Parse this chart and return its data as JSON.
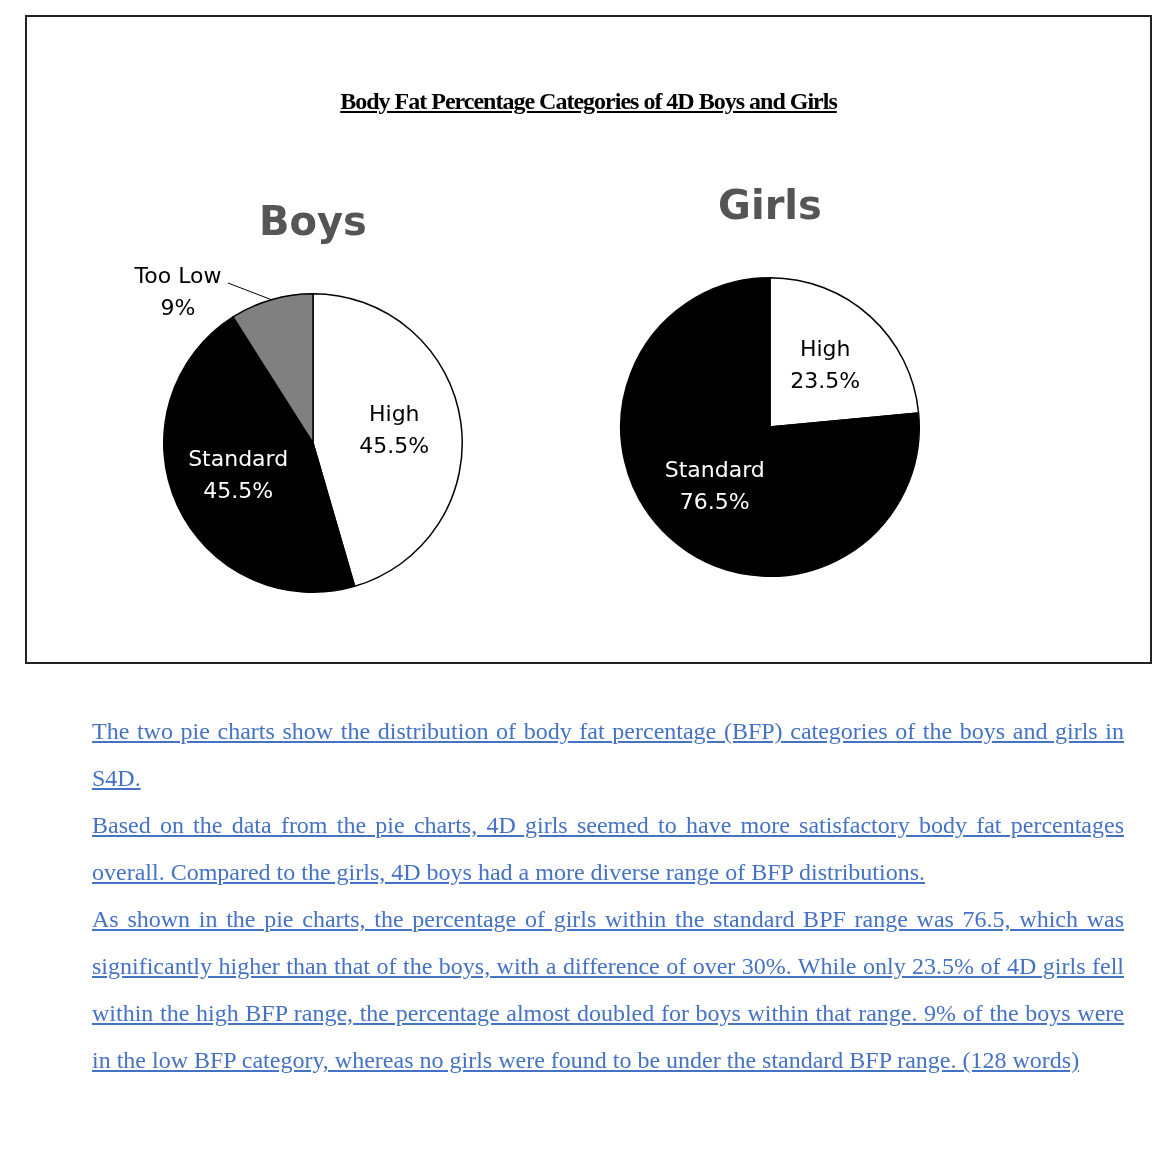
{
  "chart_data": [
    {
      "type": "other",
      "title": "Body Fat Percentage Categories of 4D Boys and Girls"
    },
    {
      "type": "pie",
      "title": "Boys",
      "categories": [
        "High",
        "Standard",
        "Too Low"
      ],
      "values": [
        45.5,
        45.5,
        9
      ],
      "colors": [
        "#ffffff",
        "#000000",
        "#808080"
      ],
      "value_labels": [
        "45.5%",
        "45.5%",
        "9%"
      ]
    },
    {
      "type": "pie",
      "title": "Girls",
      "categories": [
        "High",
        "Standard"
      ],
      "values": [
        23.5,
        76.5
      ],
      "colors": [
        "#ffffff",
        "#000000"
      ],
      "value_labels": [
        "23.5%",
        "76.5%"
      ]
    },
    {
      "type": "other",
      "annotations": [
        "The two pie charts show the distribution of body fat percentage (BFP) categories of the boys and girls in S4D.",
        "Based on the data from the pie charts, 4D girls seemed to have more satisfactory body fat percentages overall. Compared to the girls, 4D boys had a more diverse range of BFP distributions.",
        "As shown in the pie charts, the percentage of girls within the standard BPF range was 76.5, which was significantly higher than that of the boys, with a difference of over 30%. While only 23.5% of 4D girls fell within the high BFP range, the percentage almost doubled for boys within that range. 9% of the boys were in the low BFP category, whereas no girls were found to be under the standard BFP range. (128 words)"
      ]
    }
  ]
}
